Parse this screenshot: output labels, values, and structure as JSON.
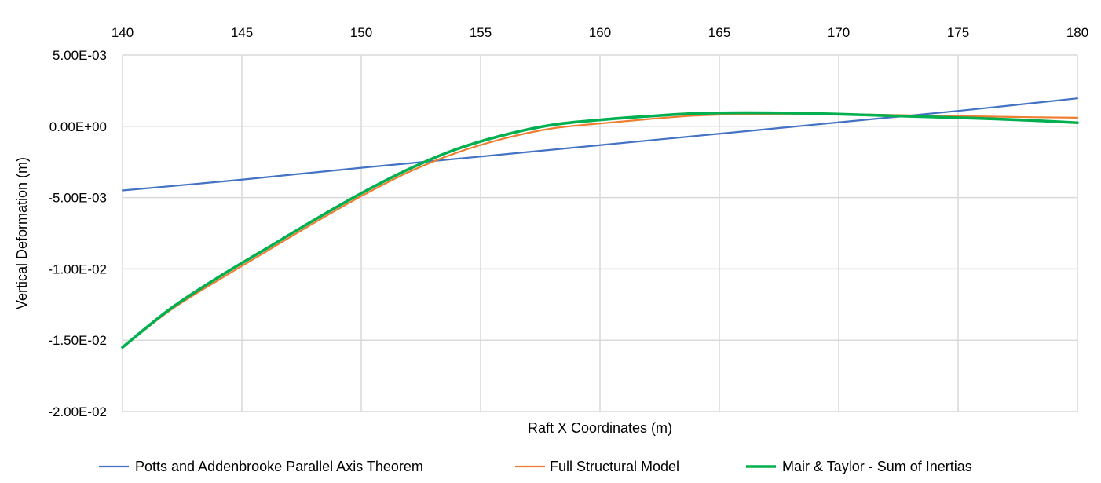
{
  "chart_data": {
    "type": "line",
    "title": "",
    "xlabel": "Raft X Coordinates (m)",
    "ylabel": "Vertical Deformation (m)",
    "xlim": [
      140,
      180
    ],
    "ylim": [
      -0.02,
      0.005
    ],
    "x_ticks": [
      "140",
      "145",
      "150",
      "155",
      "160",
      "165",
      "170",
      "175",
      "180"
    ],
    "x_tick_values": [
      140,
      145,
      150,
      155,
      160,
      165,
      170,
      175,
      180
    ],
    "y_ticks": [
      "5.00E-03",
      "0.00E+00",
      "-5.00E-03",
      "-1.00E-02",
      "-1.50E-02",
      "-2.00E-02"
    ],
    "y_tick_values": [
      0.005,
      0,
      -0.005,
      -0.01,
      -0.015,
      -0.02
    ],
    "x_axis_position": "top",
    "grid": true,
    "legend_position": "bottom",
    "series": [
      {
        "name": "Potts and Addenbrooke Parallel Axis Theorem",
        "color": "#4472c4",
        "width": 2.2,
        "x": [
          140,
          145,
          150,
          155,
          160,
          165,
          170,
          175,
          180
        ],
        "values": [
          -0.0045,
          -0.00374,
          -0.00291,
          -0.00212,
          -0.00132,
          -0.00052,
          0.00028,
          0.00108,
          0.00196
        ]
      },
      {
        "name": "Full Structural Model",
        "color": "#ed7d31",
        "width": 2.2,
        "x": [
          140,
          142,
          144,
          146,
          148,
          150,
          152,
          154,
          156,
          158,
          160,
          162,
          164,
          166,
          168,
          170,
          172,
          174,
          176,
          178,
          180
        ],
        "values": [
          -0.0155,
          -0.0129,
          -0.0108,
          -0.0088,
          -0.0068,
          -0.0049,
          -0.0032,
          -0.00185,
          -0.00085,
          -0.00015,
          0.0002,
          0.0005,
          0.00075,
          0.00085,
          0.00088,
          0.00085,
          0.0008,
          0.00074,
          0.00069,
          0.00064,
          0.0006
        ]
      },
      {
        "name": "Mair & Taylor - Sum of Inertias",
        "color": "#00b050",
        "width": 3.6,
        "x": [
          140,
          142,
          144,
          146,
          148,
          150,
          152,
          154,
          156,
          158,
          160,
          162,
          164,
          166,
          168,
          170,
          172,
          174,
          176,
          178,
          180
        ],
        "values": [
          -0.0155,
          -0.0128,
          -0.0106,
          -0.0086,
          -0.0066,
          -0.0047,
          -0.003,
          -0.0016,
          -0.0006,
          0.0001,
          0.00045,
          0.0007,
          0.0009,
          0.00095,
          0.00093,
          0.00085,
          0.00075,
          0.00065,
          0.00055,
          0.00042,
          0.00025
        ]
      }
    ]
  }
}
